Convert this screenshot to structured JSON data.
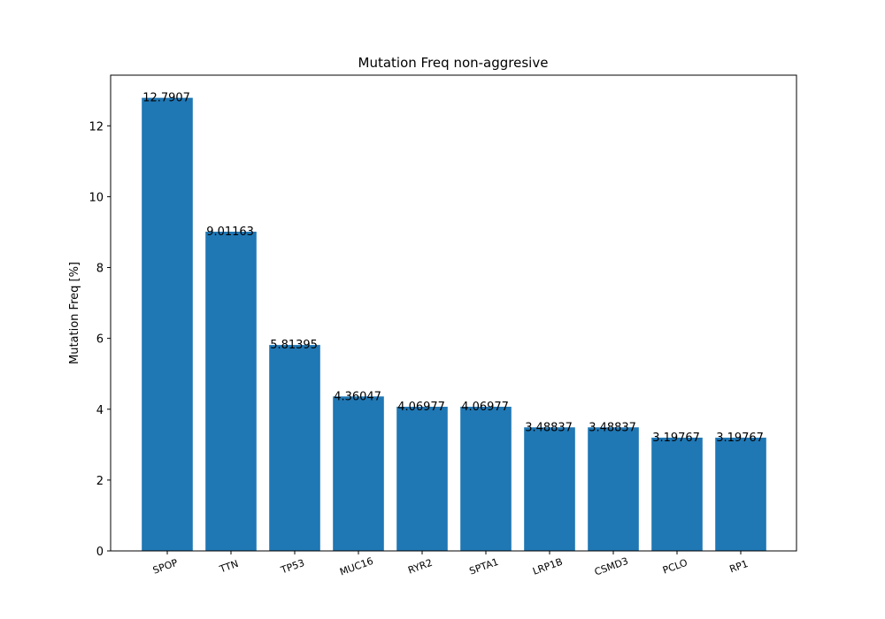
{
  "chart_data": {
    "type": "bar",
    "title": "Mutation Freq non-aggresive",
    "xlabel": "",
    "ylabel": "Mutation Freq [%]",
    "categories": [
      "SPOP",
      "TTN",
      "TP53",
      "MUC16",
      "RYR2",
      "SPTA1",
      "LRP1B",
      "CSMD3",
      "PCLO",
      "RP1"
    ],
    "values": [
      12.7907,
      9.01163,
      5.81395,
      4.36047,
      4.06977,
      4.06977,
      3.48837,
      3.48837,
      3.19767,
      3.19767
    ],
    "data_labels": [
      "12.7907",
      "9.01163",
      "5.81395",
      "4.36047",
      "4.06977",
      "4.06977",
      "3.48837",
      "3.48837",
      "3.19767",
      "3.19767"
    ],
    "ylim": [
      0,
      13.43
    ],
    "yticks": [
      0,
      2,
      4,
      6,
      8,
      10,
      12
    ],
    "grid": false,
    "bar_color": "#1f77b4"
  }
}
